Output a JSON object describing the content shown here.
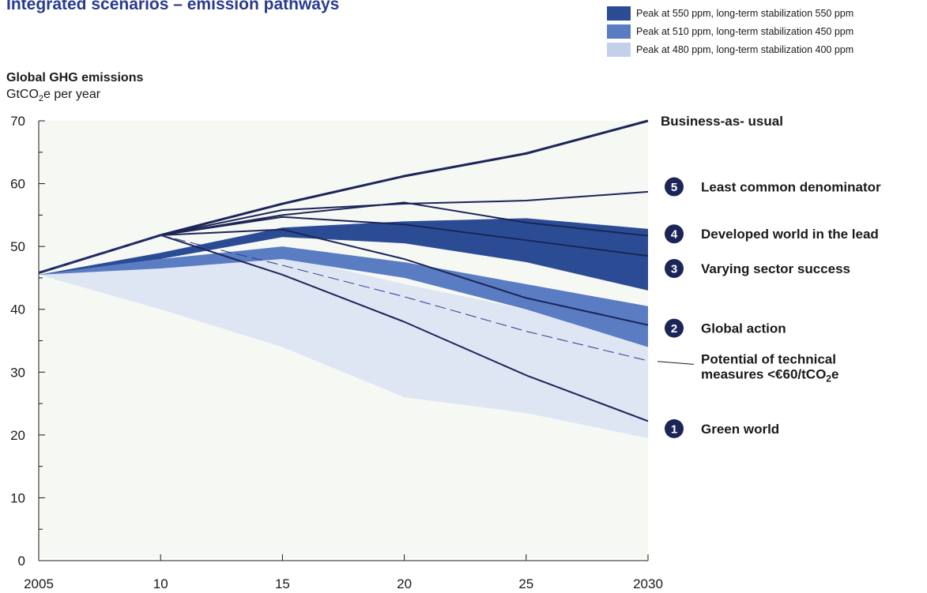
{
  "title": "Integrated scenarios – emission pathways",
  "ylabel": {
    "main": "Global GHG emissions",
    "unit_prefix": "GtCO",
    "unit_sub": "2",
    "unit_suffix": "e per year"
  },
  "legend": [
    {
      "label": "Peak at 550 ppm, long-term stabilization 550 ppm",
      "color": "#2b4c95"
    },
    {
      "label": "Peak at 510 ppm, long-term stabilization 450 ppm",
      "color": "#5a7cc2"
    },
    {
      "label": "Peak at 480 ppm, long-term stabilization 400 ppm",
      "color": "#c3d0ea"
    }
  ],
  "chart_data": {
    "type": "line",
    "x_ticks": [
      "2005",
      "10",
      "15",
      "20",
      "25",
      "2030"
    ],
    "x": [
      2005,
      2010,
      2015,
      2020,
      2025,
      2030
    ],
    "ylim": [
      0,
      70
    ],
    "y_ticks": [
      0,
      10,
      20,
      30,
      40,
      50,
      60,
      70
    ],
    "bands": [
      {
        "legend_index": 2,
        "color": "#dee5f3",
        "upper": [
          45.5,
          47.0,
          48.5,
          44.0,
          40.0,
          35.0
        ],
        "lower": [
          45.5,
          40.0,
          34.0,
          26.0,
          23.5,
          19.5
        ]
      },
      {
        "legend_index": 1,
        "color": "#5a7cc2",
        "upper": [
          45.5,
          48.0,
          50.0,
          47.5,
          44.0,
          40.5
        ],
        "lower": [
          45.5,
          46.5,
          48.0,
          45.0,
          40.0,
          34.0
        ]
      },
      {
        "legend_index": 0,
        "color": "#2b4c95",
        "upper": [
          45.5,
          49.0,
          53.0,
          54.0,
          54.5,
          52.8
        ],
        "lower": [
          45.5,
          48.0,
          51.5,
          50.5,
          47.5,
          43.0
        ]
      }
    ],
    "series": [
      {
        "name": "Business-as- usual",
        "values": [
          45.8,
          51.8,
          56.8,
          61.2,
          64.8,
          70.0
        ],
        "width": 3
      },
      {
        "name": "Least common denominator",
        "marker": "5",
        "values": [
          45.8,
          51.8,
          55.8,
          56.8,
          57.3,
          58.7
        ],
        "width": 2
      },
      {
        "name": "Developed world in the lead",
        "marker": "4",
        "values": [
          45.8,
          51.8,
          55.0,
          57.0,
          53.8,
          51.7
        ],
        "width": 2
      },
      {
        "name": "Varying sector success",
        "marker": "3",
        "values": [
          45.8,
          51.8,
          54.7,
          53.5,
          51.0,
          48.5
        ],
        "width": 2
      },
      {
        "name": "Global action",
        "marker": "2",
        "values": [
          45.8,
          51.8,
          52.7,
          48.0,
          41.8,
          37.5
        ],
        "width": 2
      },
      {
        "name": "Green world",
        "marker": "1",
        "values": [
          45.8,
          51.8,
          45.5,
          38.0,
          29.5,
          22.2
        ],
        "width": 2
      },
      {
        "name": "Potential of technical measures <€60/tCO₂e",
        "values": [
          45.8,
          51.8,
          47.0,
          42.0,
          36.5,
          31.8
        ],
        "dashed": true,
        "width": 1
      }
    ],
    "labels": [
      {
        "text": "Business-as- usual",
        "anchor_y": 70.0
      },
      {
        "text": "Least common denominator",
        "marker": "5",
        "anchor_y": 59.5
      },
      {
        "text": "Developed world in the lead",
        "marker": "4",
        "anchor_y": 52.0
      },
      {
        "text": "Varying sector success",
        "marker": "3",
        "anchor_y": 46.5
      },
      {
        "text": "Global action",
        "marker": "2",
        "anchor_y": 37.0
      },
      {
        "text1": "Potential of technical",
        "text2_prefix": "measures <€60/tCO",
        "text2_sub": "2",
        "text2_suffix": "e",
        "anchor_y": 31.5
      },
      {
        "text": "Green world",
        "marker": "1",
        "anchor_y": 21.0
      }
    ]
  }
}
